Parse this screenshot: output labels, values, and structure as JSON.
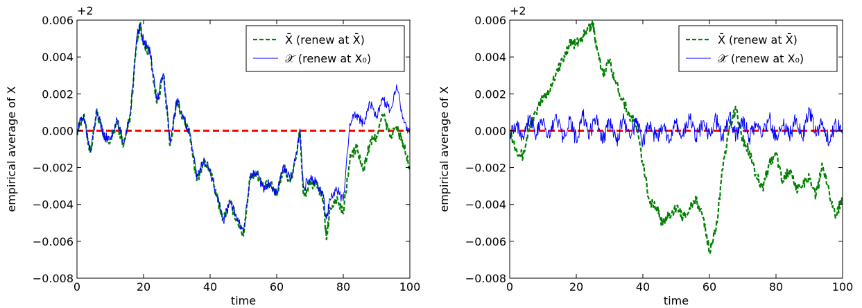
{
  "chart_data": [
    {
      "type": "line",
      "panel": "left",
      "xlabel": "time",
      "ylabel": "empirical average of X",
      "offset_label": "+2",
      "xlim": [
        0,
        100
      ],
      "ylim": [
        -0.008,
        0.006
      ],
      "xticks": [
        0,
        20,
        40,
        60,
        80,
        100
      ],
      "yticks": [
        -0.008,
        -0.006,
        -0.004,
        -0.002,
        0.0,
        0.002,
        0.004,
        0.006
      ],
      "xtick_labels": [
        "0",
        "20",
        "40",
        "60",
        "80",
        "100"
      ],
      "ytick_labels": [
        "−0.008",
        "−0.006",
        "−0.004",
        "−0.002",
        "0.000",
        "0.002",
        "0.004",
        "0.006"
      ],
      "grid": false,
      "legend_position": "top-right",
      "reference_line": {
        "y": 0.0,
        "color": "#ff0000",
        "style": "dashed"
      },
      "series": [
        {
          "name": "X̄ (renew at X̄)",
          "color": "#008000",
          "style": "dashed",
          "x": [
            0,
            2,
            4,
            6,
            8,
            10,
            12,
            14,
            16,
            18,
            19,
            20,
            22,
            24,
            26,
            28,
            30,
            32,
            34,
            36,
            38,
            40,
            42,
            44,
            46,
            48,
            50,
            52,
            54,
            56,
            58,
            60,
            62,
            64,
            66,
            67,
            68,
            70,
            72,
            74,
            75,
            76,
            78,
            80,
            82,
            84,
            86,
            88,
            90,
            92,
            94,
            96,
            98,
            100
          ],
          "y": [
            0.0,
            0.0008,
            -0.0012,
            0.0011,
            -0.0004,
            -0.0006,
            0.0005,
            -0.0008,
            0.0008,
            0.005,
            0.0057,
            0.0047,
            0.0042,
            0.0015,
            0.003,
            -0.0008,
            0.0016,
            0.0006,
            -0.0003,
            -0.0027,
            -0.0017,
            -0.0021,
            -0.0036,
            -0.0048,
            -0.0039,
            -0.0048,
            -0.0057,
            -0.0025,
            -0.0023,
            -0.0031,
            -0.0029,
            -0.0035,
            -0.002,
            -0.0028,
            -0.0012,
            0.0,
            -0.0035,
            -0.003,
            -0.0028,
            -0.0039,
            -0.0059,
            -0.0042,
            -0.0037,
            -0.0045,
            -0.0015,
            -0.0009,
            -0.0022,
            -0.0007,
            -0.0003,
            0.0009,
            -0.0003,
            0.0002,
            -0.0007,
            -0.0021
          ]
        },
        {
          "name": "𝒳̄ (renew at X₀)",
          "color": "#0000ff",
          "style": "solid",
          "x": [
            0,
            2,
            4,
            6,
            8,
            10,
            12,
            14,
            16,
            18,
            19,
            20,
            22,
            24,
            26,
            28,
            30,
            32,
            34,
            36,
            38,
            40,
            42,
            44,
            46,
            48,
            50,
            52,
            54,
            56,
            58,
            60,
            62,
            64,
            66,
            67,
            68,
            70,
            72,
            74,
            75,
            76,
            78,
            80,
            82,
            84,
            86,
            88,
            90,
            92,
            94,
            96,
            98,
            100
          ],
          "y": [
            0.0,
            0.0009,
            -0.0011,
            0.0012,
            -0.0003,
            -0.0005,
            0.0006,
            -0.0007,
            0.0009,
            0.0051,
            0.0058,
            0.0048,
            0.0043,
            0.0016,
            0.0031,
            -0.0007,
            0.0017,
            0.0007,
            -0.0002,
            -0.0026,
            -0.0016,
            -0.0022,
            -0.0035,
            -0.0049,
            -0.0038,
            -0.0047,
            -0.0056,
            -0.0026,
            -0.0022,
            -0.0032,
            -0.0028,
            -0.0034,
            -0.0019,
            -0.0027,
            -0.0013,
            0.0001,
            -0.0031,
            -0.0026,
            -0.0028,
            -0.0036,
            -0.0048,
            -0.0037,
            -0.0032,
            -0.0038,
            0.0004,
            0.0009,
            0.0004,
            0.0015,
            0.0008,
            0.0017,
            0.0011,
            0.0025,
            0.0007,
            -0.0002
          ]
        }
      ]
    },
    {
      "type": "line",
      "panel": "right",
      "xlabel": "time",
      "ylabel": "empirical average of X",
      "offset_label": "+2",
      "xlim": [
        0,
        100
      ],
      "ylim": [
        -0.008,
        0.006
      ],
      "xticks": [
        0,
        20,
        40,
        60,
        80,
        100
      ],
      "yticks": [
        -0.008,
        -0.006,
        -0.004,
        -0.002,
        0.0,
        0.002,
        0.004,
        0.006
      ],
      "xtick_labels": [
        "0",
        "20",
        "40",
        "60",
        "80",
        "100"
      ],
      "ytick_labels": [
        "−0.008",
        "−0.006",
        "−0.004",
        "−0.002",
        "0.000",
        "0.002",
        "0.004",
        "0.006"
      ],
      "grid": false,
      "legend_position": "top-right",
      "reference_line": {
        "y": 0.0,
        "color": "#ff0000",
        "style": "dashed"
      },
      "series": [
        {
          "name": "X̄ (renew at X̄)",
          "color": "#008000",
          "style": "dashed",
          "x": [
            0,
            2,
            4,
            6,
            8,
            10,
            12,
            14,
            16,
            18,
            20,
            22,
            24,
            25,
            26,
            28,
            30,
            32,
            34,
            36,
            38,
            40,
            42,
            44,
            46,
            48,
            50,
            52,
            54,
            56,
            58,
            60,
            62,
            64,
            66,
            68,
            70,
            72,
            74,
            76,
            78,
            80,
            82,
            84,
            86,
            88,
            90,
            92,
            94,
            96,
            98,
            100
          ],
          "y": [
            0.0,
            -0.001,
            -0.0014,
            0.0003,
            0.001,
            0.0018,
            0.0022,
            0.0032,
            0.0038,
            0.0048,
            0.0047,
            0.0051,
            0.0056,
            0.0059,
            0.0045,
            0.0031,
            0.0038,
            0.0025,
            0.0017,
            0.0008,
            0.0003,
            -0.0018,
            -0.0038,
            -0.0041,
            -0.0051,
            -0.0045,
            -0.0042,
            -0.0047,
            -0.0042,
            -0.0038,
            -0.0046,
            -0.0065,
            -0.0053,
            -0.0021,
            0.0002,
            0.0012,
            -0.0005,
            -0.0011,
            -0.0024,
            -0.0031,
            -0.0018,
            -0.0012,
            -0.0028,
            -0.0021,
            -0.0032,
            -0.0029,
            -0.0025,
            -0.0035,
            -0.0019,
            -0.0033,
            -0.0047,
            -0.0035
          ]
        },
        {
          "name": "𝒳̄ (renew at X₀)",
          "color": "#0000ff",
          "style": "solid",
          "x": [
            0,
            2,
            4,
            6,
            8,
            10,
            12,
            14,
            16,
            18,
            20,
            22,
            24,
            26,
            28,
            30,
            32,
            34,
            36,
            38,
            40,
            42,
            44,
            46,
            48,
            50,
            52,
            54,
            56,
            58,
            60,
            62,
            64,
            66,
            68,
            70,
            72,
            74,
            76,
            78,
            80,
            82,
            84,
            86,
            88,
            90,
            92,
            94,
            96,
            98,
            100
          ],
          "y": [
            0.0,
            0.0004,
            -0.0003,
            0.0008,
            -0.0002,
            0.0005,
            -0.0004,
            0.0009,
            -0.0003,
            0.0006,
            -0.0005,
            0.0008,
            -0.0002,
            0.0007,
            -0.0004,
            0.0005,
            -0.0006,
            0.0006,
            -0.0003,
            0.0004,
            -0.0005,
            0.0003,
            -0.0004,
            0.0002,
            -0.0006,
            0.0004,
            -0.0003,
            0.0007,
            -0.0004,
            0.0005,
            -0.0002,
            0.0006,
            -0.0005,
            0.0009,
            -0.0003,
            0.0006,
            -0.0004,
            0.0004,
            -0.0002,
            0.0007,
            -0.0005,
            0.0003,
            -0.0003,
            0.0006,
            -0.0004,
            0.0012,
            -0.0003,
            0.0005,
            -0.0006,
            0.0004,
            -0.0002
          ]
        }
      ]
    }
  ]
}
